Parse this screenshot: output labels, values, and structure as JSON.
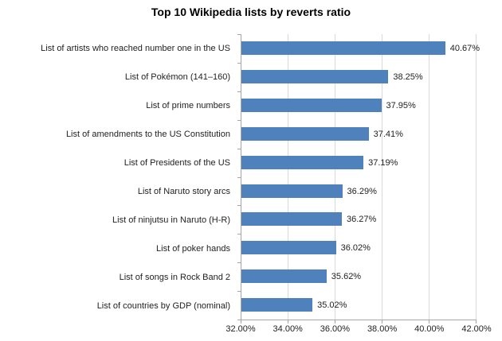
{
  "chart_data": {
    "type": "bar",
    "orientation": "horizontal",
    "title": "Top 10 Wikipedia lists by reverts ratio",
    "categories": [
      "List of artists who reached number one in the US",
      "List of Pokémon (141–160)",
      "List of prime numbers",
      "List of amendments to the US Constitution",
      "List of Presidents of the US",
      "List of Naruto story arcs",
      "List of ninjutsu in Naruto (H-R)",
      "List of poker hands",
      "List of songs in Rock Band 2",
      "List of countries by GDP (nominal)"
    ],
    "values": [
      40.67,
      38.25,
      37.95,
      37.41,
      37.19,
      36.29,
      36.27,
      36.02,
      35.62,
      35.02
    ],
    "value_labels": [
      "40.67%",
      "38.25%",
      "37.95%",
      "37.41%",
      "37.19%",
      "36.29%",
      "36.27%",
      "36.02%",
      "35.62%",
      "35.02%"
    ],
    "x_tick_labels": [
      "32.00%",
      "34.00%",
      "36.00%",
      "38.00%",
      "40.00%",
      "42.00%"
    ],
    "xlim": [
      32,
      42
    ],
    "xlabel": "",
    "ylabel": "",
    "grid": true,
    "legend": "none",
    "bar_color": "#4f81bd",
    "gridline_color": "#d9d9d9",
    "axis_color": "#a6a6a6"
  }
}
